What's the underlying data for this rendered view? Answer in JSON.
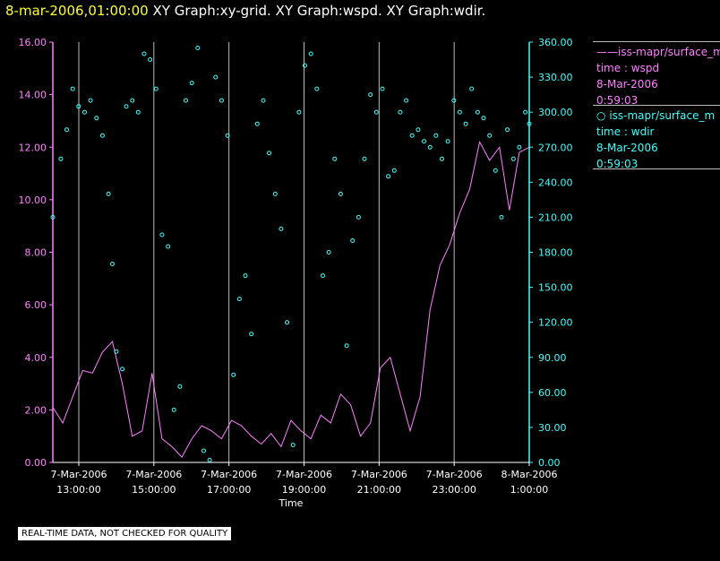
{
  "header": {
    "timestamp": "8-mar-2006,01:00:00",
    "graph_titles": "XY Graph:xy-grid.  XY Graph:wspd.  XY Graph:wdir."
  },
  "legend": {
    "wspd": {
      "marker": "——",
      "name": "iss-mapr/surface_m",
      "var": "time : wspd",
      "date": "8-Mar-2006",
      "time": "0:59:03"
    },
    "wdir": {
      "marker": "○",
      "name": "iss-mapr/surface_m",
      "var": "time : wdir",
      "date": "8-Mar-2006",
      "time": "0:59:03"
    }
  },
  "note": "REAL-TIME DATA, NOT CHECKED FOR QUALITY",
  "colors": {
    "wspd": "#ff80ff",
    "wdir": "#40ffff",
    "grid": "#bbbbbb",
    "title": "#ffff33"
  },
  "chart_data": {
    "type": "line",
    "xlabel": "Time",
    "x_tick_labels": [
      [
        "7-Mar-2006",
        "13:00:00"
      ],
      [
        "7-Mar-2006",
        "15:00:00"
      ],
      [
        "7-Mar-2006",
        "17:00:00"
      ],
      [
        "7-Mar-2006",
        "19:00:00"
      ],
      [
        "7-Mar-2006",
        "21:00:00"
      ],
      [
        "7-Mar-2006",
        "23:00:00"
      ],
      [
        "8-Mar-2006",
        "1:00:00"
      ]
    ],
    "xlim_hours": [
      0,
      12
    ],
    "left_axis": {
      "ylim": [
        0,
        16
      ],
      "ticks": [
        "0.00",
        "2.00",
        "4.00",
        "6.00",
        "8.00",
        "10.00",
        "12.00",
        "14.00",
        "16.00"
      ]
    },
    "right_axis": {
      "ylim": [
        0,
        360
      ],
      "ticks": [
        "0.00",
        "30.00",
        "60.00",
        "90.00",
        "120.00",
        "150.00",
        "180.00",
        "210.00",
        "240.00",
        "270.00",
        "300.00",
        "330.00",
        "360.00"
      ]
    },
    "series": [
      {
        "name": "wspd",
        "style": "line",
        "axis": "left",
        "x": [
          0,
          0.25,
          0.5,
          0.75,
          1,
          1.25,
          1.5,
          1.75,
          2,
          2.25,
          2.5,
          2.75,
          3,
          3.25,
          3.5,
          3.75,
          4,
          4.25,
          4.5,
          4.75,
          5,
          5.25,
          5.5,
          5.75,
          6,
          6.25,
          6.5,
          6.75,
          7,
          7.25,
          7.5,
          7.75,
          8,
          8.25,
          8.5,
          8.75,
          9,
          9.25,
          9.5,
          9.75,
          10,
          10.25,
          10.5,
          10.75,
          11,
          11.25,
          11.5,
          11.75,
          12
        ],
        "values": [
          2.1,
          1.5,
          2.5,
          3.5,
          3.4,
          4.2,
          4.6,
          3.0,
          1.0,
          1.2,
          3.4,
          0.9,
          0.6,
          0.2,
          0.9,
          1.4,
          1.2,
          0.9,
          1.6,
          1.4,
          1.0,
          0.7,
          1.1,
          0.6,
          1.6,
          1.2,
          0.9,
          1.8,
          1.5,
          2.6,
          2.2,
          1.0,
          1.5,
          3.6,
          4.0,
          2.6,
          1.2,
          2.5,
          5.8,
          7.5,
          8.3,
          9.5,
          10.4,
          12.2,
          11.5,
          12.0,
          9.6,
          11.8,
          12.0
        ]
      },
      {
        "name": "wdir",
        "style": "scatter",
        "axis": "right",
        "x": [
          0,
          0.2,
          0.35,
          0.5,
          0.65,
          0.8,
          0.95,
          1.1,
          1.25,
          1.4,
          1.5,
          1.6,
          1.75,
          1.85,
          2.0,
          2.15,
          2.3,
          2.45,
          2.6,
          2.75,
          2.9,
          3.05,
          3.2,
          3.35,
          3.5,
          3.65,
          3.8,
          3.95,
          4.1,
          4.25,
          4.4,
          4.55,
          4.7,
          4.85,
          5.0,
          5.15,
          5.3,
          5.45,
          5.6,
          5.75,
          5.9,
          6.05,
          6.2,
          6.35,
          6.5,
          6.65,
          6.8,
          6.95,
          7.1,
          7.25,
          7.4,
          7.55,
          7.7,
          7.85,
          8.0,
          8.15,
          8.3,
          8.45,
          8.6,
          8.75,
          8.9,
          9.05,
          9.2,
          9.35,
          9.5,
          9.65,
          9.8,
          9.95,
          10.1,
          10.25,
          10.4,
          10.55,
          10.7,
          10.85,
          11.0,
          11.15,
          11.3,
          11.45,
          11.6,
          11.75,
          11.9,
          12.0
        ],
        "values": [
          210,
          260,
          285,
          320,
          305,
          300,
          310,
          295,
          280,
          230,
          170,
          95,
          80,
          305,
          310,
          300,
          350,
          345,
          320,
          195,
          185,
          45,
          65,
          310,
          325,
          355,
          10,
          2,
          330,
          310,
          280,
          75,
          140,
          160,
          110,
          290,
          310,
          265,
          230,
          200,
          120,
          15,
          300,
          340,
          350,
          320,
          160,
          180,
          260,
          230,
          100,
          190,
          210,
          260,
          315,
          300,
          320,
          245,
          250,
          300,
          310,
          280,
          285,
          275,
          270,
          280,
          260,
          275,
          310,
          300,
          290,
          320,
          300,
          295,
          280,
          250,
          210,
          285,
          260,
          270,
          300,
          290
        ]
      }
    ]
  }
}
